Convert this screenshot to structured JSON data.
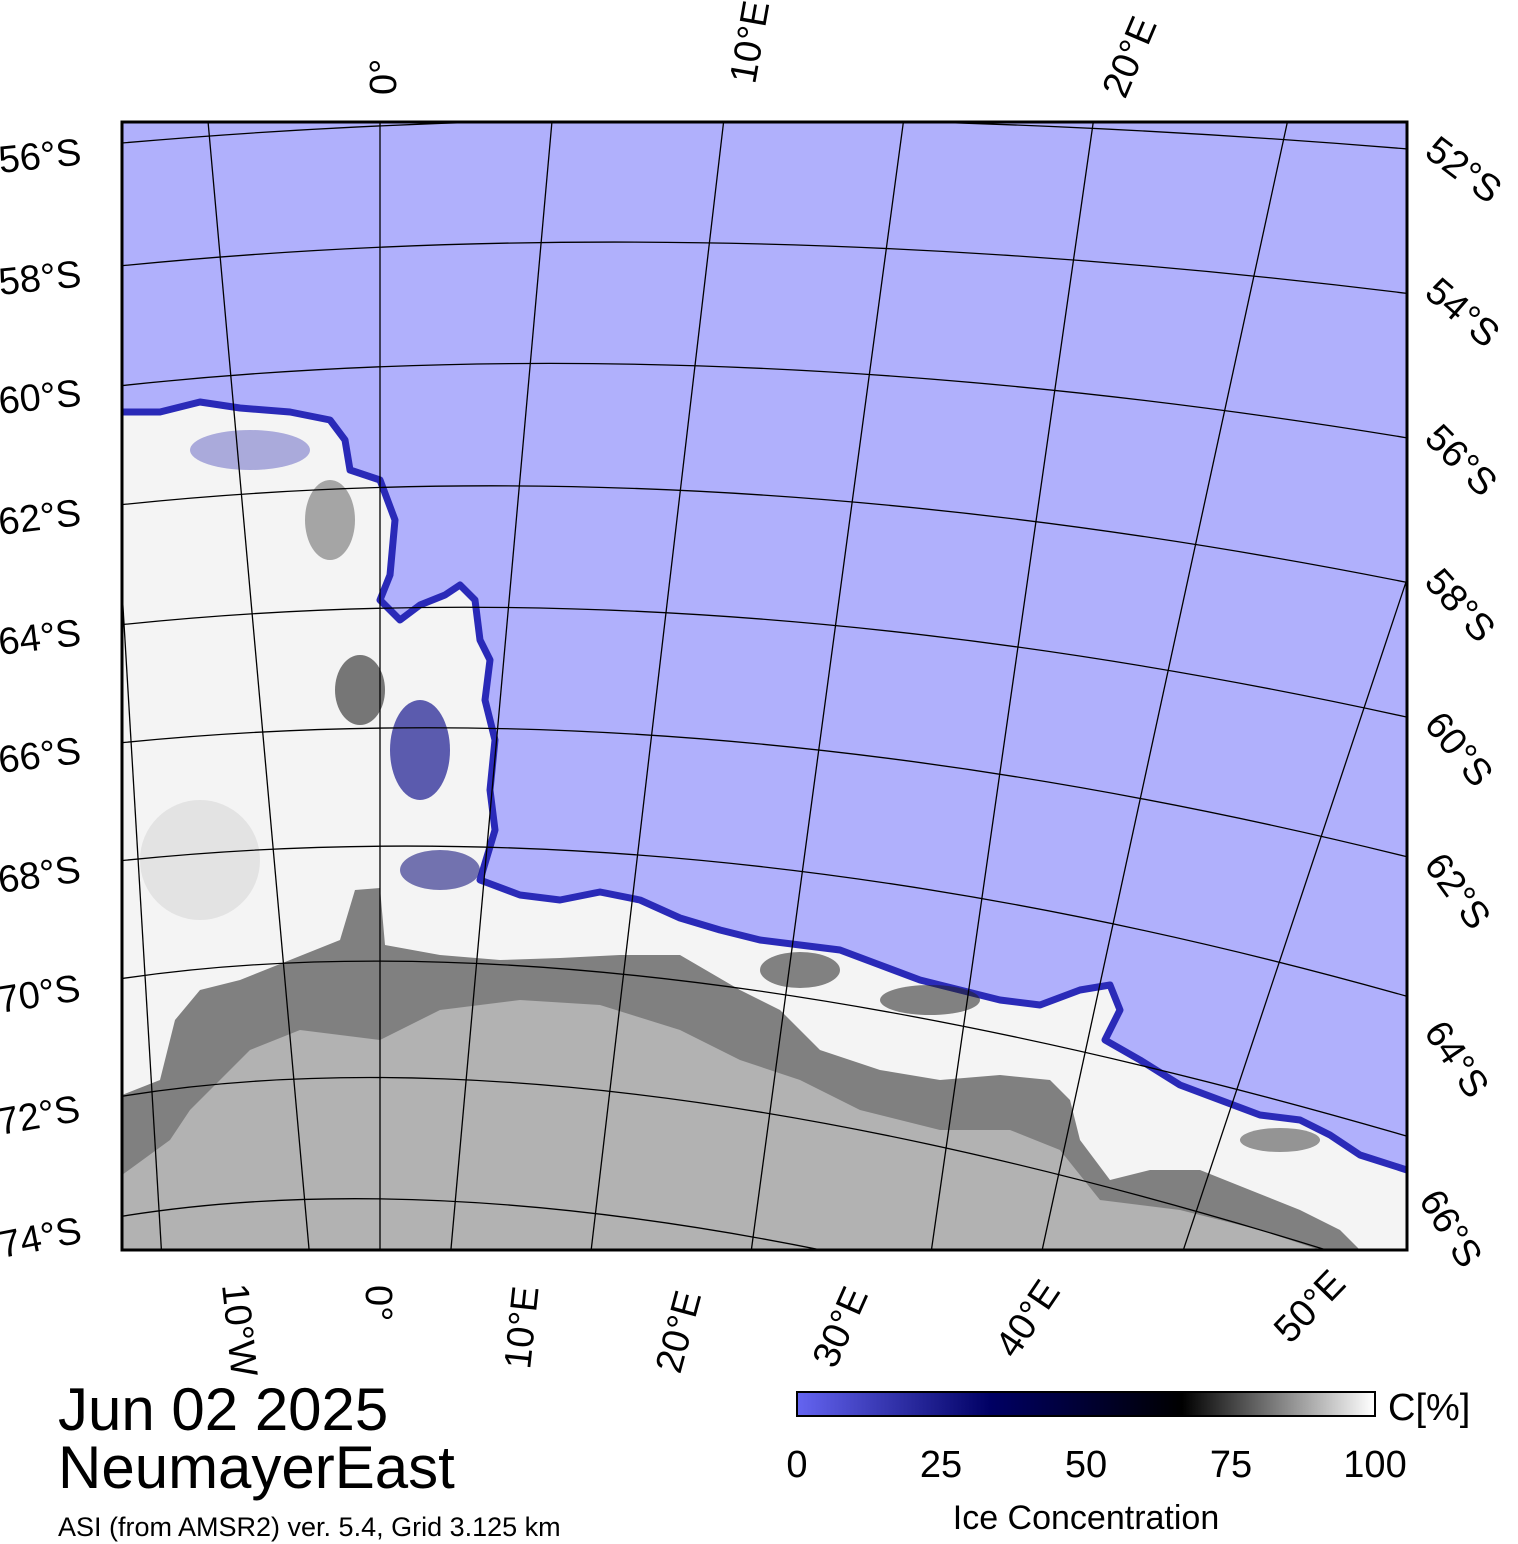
{
  "map": {
    "date": "Jun 02 2025",
    "region": "NeumayerEast",
    "source": "ASI (from AMSR2) ver. 5.4,  Grid 3.125 km",
    "top_lon_labels": [
      "0°",
      "10°E",
      "20°E"
    ],
    "bottom_lon_labels": [
      "10°W",
      "0°",
      "10°E",
      "20°E",
      "30°E",
      "40°E",
      "50°E"
    ],
    "left_lat_labels": [
      "56°S",
      "58°S",
      "60°S",
      "62°S",
      "64°S",
      "66°S",
      "68°S",
      "70°S",
      "72°S",
      "74°S"
    ],
    "right_lat_labels": [
      "52°S",
      "54°S",
      "56°S",
      "58°S",
      "60°S",
      "62°S",
      "64°S",
      "66°S"
    ]
  },
  "colorbar": {
    "unit": "C[%]",
    "title": "Ice Concentration",
    "ticks": [
      "0",
      "25",
      "50",
      "75",
      "100"
    ],
    "colors": [
      "#6464f0",
      "#000064",
      "#000000",
      "#ffffff"
    ]
  },
  "colors": {
    "open_water": "#b0b0fc",
    "land": "#b2b2b2",
    "ice_shelf": "#808080",
    "sea_ice": "#f4f4f4",
    "ice_edge": "#2a2ab8"
  }
}
